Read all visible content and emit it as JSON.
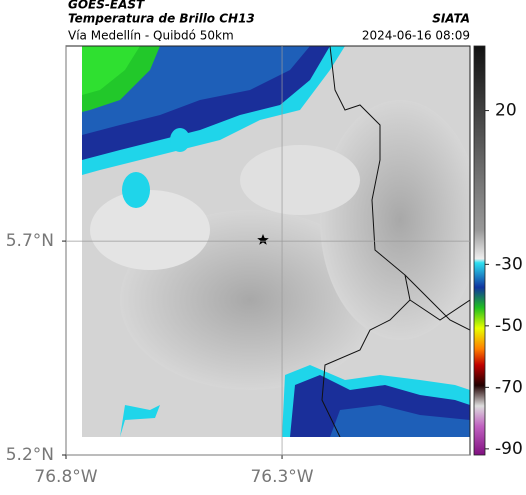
{
  "header": {
    "source": "GOES-EAST",
    "title": "Temperatura de Brillo CH13",
    "subtitle": "Vía Medellín - Quibdó 50km",
    "credit": "SIATA",
    "timestamp": "2024-06-16 08:09"
  },
  "map": {
    "xlim": [
      -76.8,
      -75.865
    ],
    "ylim": [
      5.2,
      6.156
    ],
    "xticks": [
      {
        "value": -76.8,
        "label": "76.8°W"
      },
      {
        "value": -76.3,
        "label": "76.3°W"
      }
    ],
    "yticks": [
      {
        "value": 5.7,
        "label": "5.7°N"
      },
      {
        "value": 5.2,
        "label": "5.2°N"
      }
    ],
    "grid": true
  },
  "colorbar": {
    "lim": [
      -92,
      41
    ],
    "ticks": [
      20,
      -30,
      -50,
      -70,
      -90
    ]
  }
}
